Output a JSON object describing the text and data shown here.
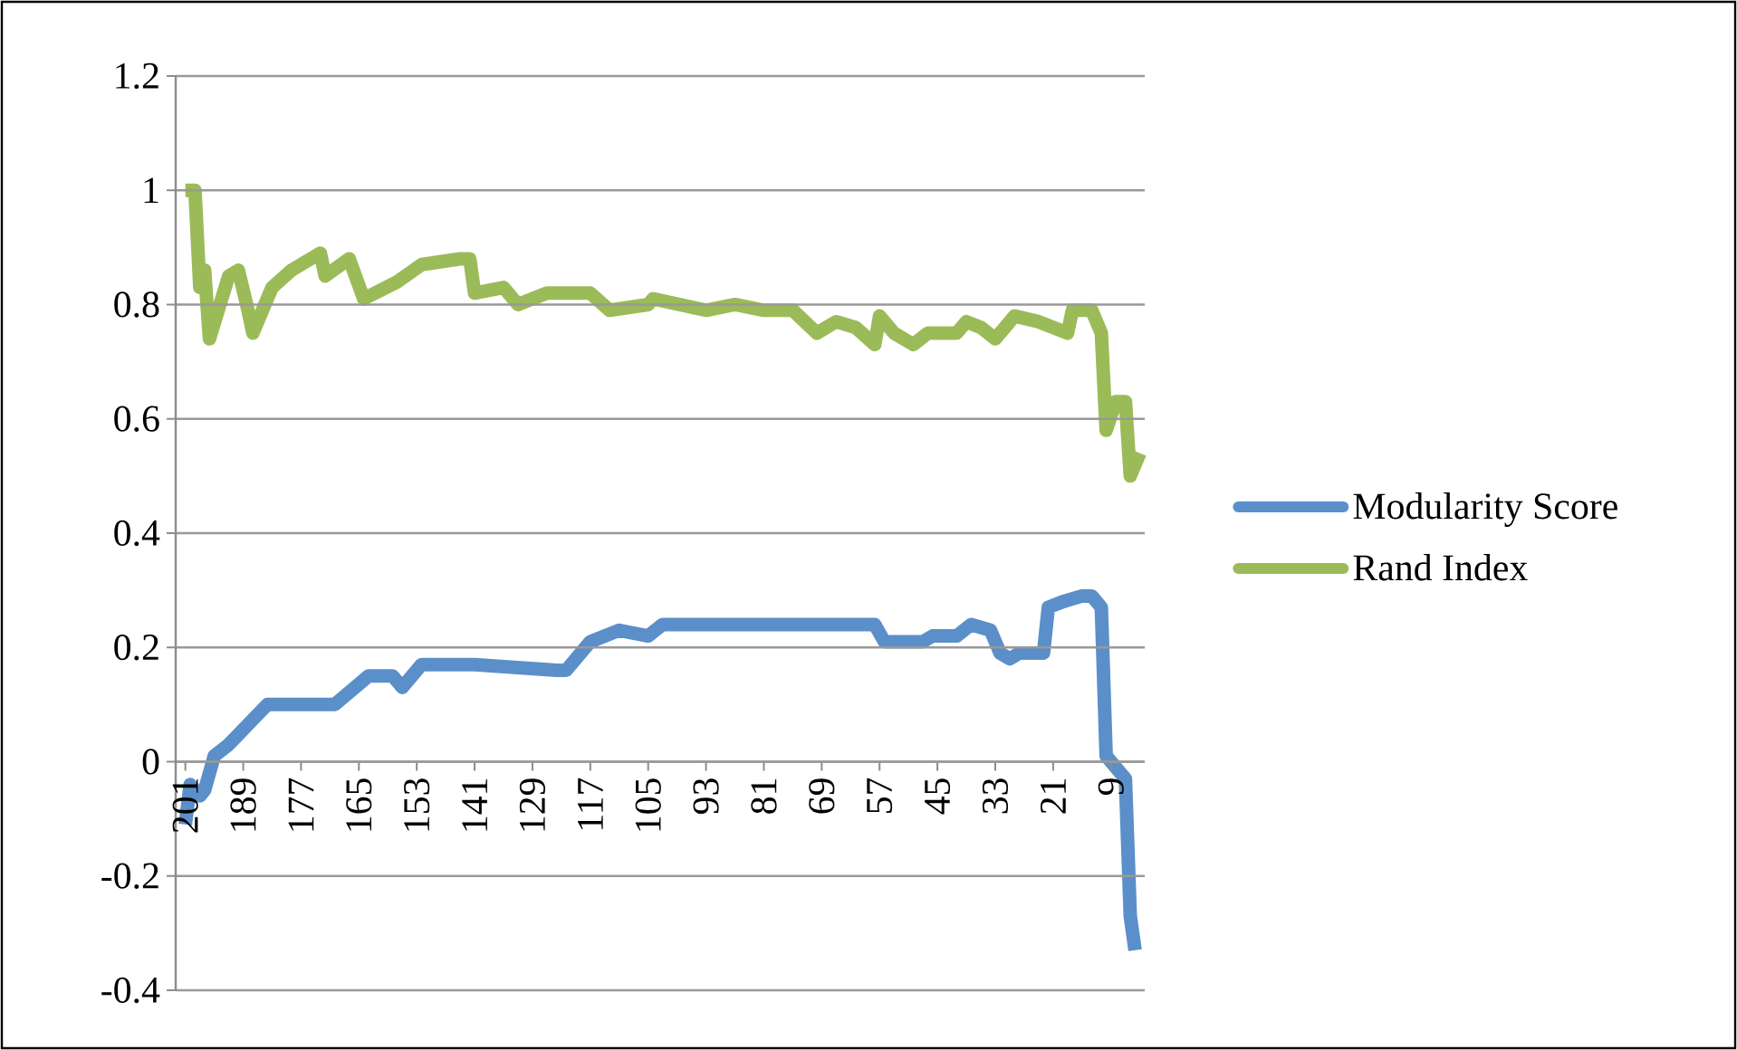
{
  "chart_data": {
    "type": "line",
    "xlim": [
      203,
      2
    ],
    "xticks": [
      201,
      189,
      177,
      165,
      153,
      141,
      129,
      117,
      105,
      93,
      81,
      69,
      57,
      45,
      33,
      21,
      9
    ],
    "ylim": [
      -0.4,
      1.2
    ],
    "yticks": [
      -0.4,
      -0.2,
      0,
      0.2,
      0.4,
      0.6,
      0.8,
      1,
      1.2
    ],
    "grid": "y",
    "legend": "right",
    "series": [
      {
        "name": "Modularity Score",
        "color": "#5b8fc9",
        "x": [
          201,
          200,
          198,
          197,
          195,
          192,
          184,
          172,
          170,
          163,
          158,
          156,
          152,
          142,
          141,
          124,
          122,
          117,
          111,
          105,
          102,
          100,
          58,
          56,
          54,
          48,
          46,
          41,
          38,
          34,
          32,
          30,
          28,
          23,
          22,
          19,
          15,
          13,
          11,
          10,
          7,
          6,
          5,
          4
        ],
        "values": [
          -0.11,
          -0.04,
          -0.06,
          -0.05,
          0.01,
          0.03,
          0.1,
          0.1,
          0.1,
          0.15,
          0.15,
          0.13,
          0.17,
          0.17,
          0.17,
          0.16,
          0.16,
          0.21,
          0.23,
          0.22,
          0.24,
          0.24,
          0.24,
          0.21,
          0.21,
          0.21,
          0.22,
          0.22,
          0.24,
          0.23,
          0.19,
          0.18,
          0.19,
          0.19,
          0.27,
          0.28,
          0.29,
          0.29,
          0.27,
          0.01,
          -0.02,
          -0.03,
          -0.27,
          -0.33
        ]
      },
      {
        "name": "Rand Index",
        "color": "#9bbb59",
        "x": [
          201,
          199,
          198,
          197,
          196,
          192,
          190,
          188,
          187,
          183,
          179,
          173,
          172,
          167,
          164,
          157,
          152,
          144,
          142,
          141,
          135,
          132,
          126,
          117,
          113,
          105,
          104,
          93,
          87,
          81,
          75,
          70,
          66,
          62,
          58,
          57,
          54,
          50,
          47,
          41,
          39,
          36,
          33,
          29,
          24,
          18,
          17,
          13,
          11,
          10,
          8,
          6,
          5,
          3
        ],
        "values": [
          1,
          1,
          0.83,
          0.86,
          0.74,
          0.85,
          0.86,
          0.79,
          0.75,
          0.83,
          0.86,
          0.89,
          0.85,
          0.88,
          0.81,
          0.84,
          0.87,
          0.88,
          0.88,
          0.82,
          0.83,
          0.8,
          0.82,
          0.82,
          0.79,
          0.8,
          0.81,
          0.79,
          0.8,
          0.79,
          0.79,
          0.75,
          0.77,
          0.76,
          0.73,
          0.78,
          0.75,
          0.73,
          0.75,
          0.75,
          0.77,
          0.76,
          0.74,
          0.78,
          0.77,
          0.75,
          0.79,
          0.79,
          0.75,
          0.58,
          0.63,
          0.63,
          0.5,
          0.54
        ]
      }
    ]
  }
}
